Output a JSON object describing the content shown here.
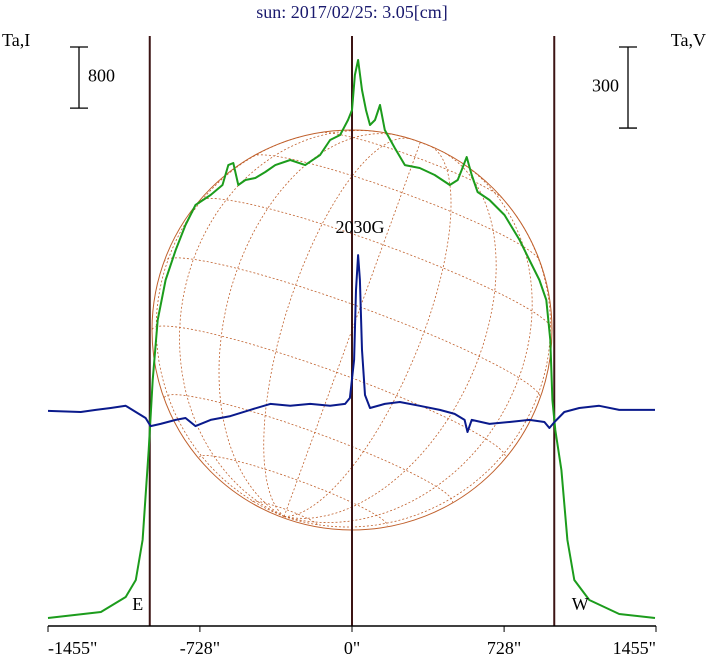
{
  "chart_data": {
    "type": "line",
    "title": "sun: 2017/02/25: 3.05[cm]",
    "ylabel": "Ta,I",
    "y2label": "Ta,V",
    "i_scale": 800,
    "v_scale": 300,
    "xlim": [
      -1455,
      1455
    ],
    "xticks": [
      {
        "value": -1455,
        "label": "-1455\""
      },
      {
        "value": -728,
        "label": "-728\""
      },
      {
        "value": 0,
        "label": "0\""
      },
      {
        "value": 728,
        "label": "728\""
      },
      {
        "value": 1455,
        "label": "1455\""
      }
    ],
    "ylim": [
      0,
      7802
    ],
    "y2lim": [
      -796,
      1410
    ],
    "limb_lines": [
      -968,
      0,
      968
    ],
    "annotations": [
      "E",
      "W",
      "2030G"
    ],
    "series": [
      {
        "name": "I",
        "color": "#1c9c1c",
        "x": [
          -1455,
          -1202,
          -1083,
          -1035,
          -1002,
          -973,
          -954,
          -930,
          -892,
          -844,
          -797,
          -749,
          -677,
          -620,
          -592,
          -568,
          -544,
          -510,
          -463,
          -415,
          -367,
          -296,
          -224,
          -153,
          -105,
          -57,
          -19,
          0,
          14,
          29,
          48,
          67,
          86,
          110,
          134,
          157,
          205,
          253,
          324,
          396,
          468,
          506,
          525,
          549,
          573,
          601,
          658,
          730,
          802,
          849,
          897,
          930,
          949,
          959,
          973,
          1002,
          1031,
          1064,
          1136,
          1279,
          1450
        ],
        "values": [
          105,
          183,
          380,
          602,
          1126,
          2304,
          3220,
          4006,
          4529,
          4922,
          5249,
          5511,
          5642,
          5773,
          6034,
          6061,
          5773,
          5838,
          5864,
          5943,
          6034,
          6100,
          6034,
          6165,
          6362,
          6427,
          6624,
          6754,
          7213,
          7409,
          7016,
          6754,
          6558,
          6624,
          6820,
          6493,
          6257,
          6034,
          5995,
          5904,
          5773,
          5838,
          5969,
          6139,
          5904,
          5681,
          5576,
          5380,
          5053,
          4791,
          4529,
          4267,
          3744,
          2958,
          2566,
          2042,
          1126,
          602,
          340,
          157,
          105
        ]
      },
      {
        "name": "V",
        "color": "#0a1a8c",
        "axis": "y2",
        "x": [
          -1455,
          -1298,
          -1226,
          -1155,
          -1083,
          -1035,
          -988,
          -964,
          -916,
          -844,
          -797,
          -749,
          -677,
          -582,
          -487,
          -391,
          -296,
          -200,
          -105,
          -33,
          -10,
          10,
          19,
          29,
          38,
          48,
          62,
          86,
          157,
          229,
          324,
          420,
          491,
          539,
          553,
          573,
          658,
          754,
          849,
          921,
          945,
          969,
          1016,
          1088,
          1183,
          1279,
          1450
        ],
        "values": [
          0,
          -4,
          4,
          11,
          19,
          -4,
          -26,
          -56,
          -48,
          -33,
          -26,
          -56,
          -33,
          -19,
          4,
          26,
          19,
          26,
          19,
          26,
          48,
          189,
          448,
          577,
          485,
          226,
          59,
          11,
          26,
          33,
          19,
          4,
          -11,
          -33,
          -78,
          -33,
          -48,
          -41,
          -33,
          -41,
          -63,
          -41,
          -4,
          11,
          19,
          4,
          4
        ]
      }
    ]
  }
}
